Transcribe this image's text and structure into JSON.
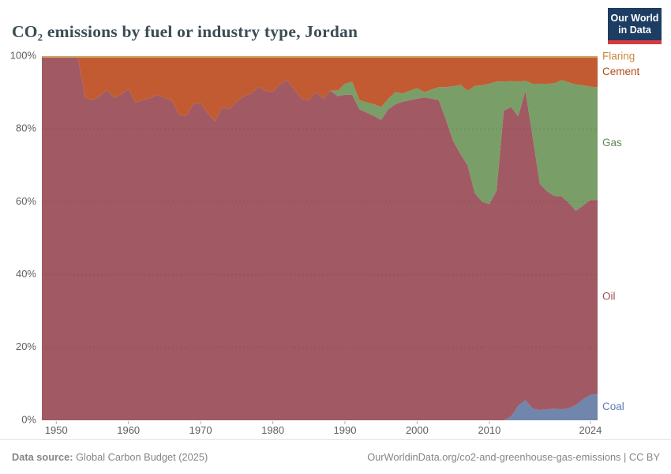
{
  "header": {
    "title": "CO₂ emissions by fuel or industry type, Jordan"
  },
  "logo": {
    "line1": "Our World",
    "line2": "in Data",
    "bg_color": "#1d3d63",
    "bar_color": "#d93a3f"
  },
  "chart_data": {
    "type": "area",
    "stacked": "percent",
    "title": "CO₂ emissions by fuel or industry type, Jordan",
    "xlabel": "",
    "ylabel": "",
    "x_start": 1948,
    "x_end": 2025,
    "xticks": [
      1950,
      1960,
      1970,
      1980,
      1990,
      2000,
      2010,
      2024
    ],
    "yticks": [
      0,
      20,
      40,
      60,
      80,
      100
    ],
    "ytick_suffix": "%",
    "ylim": [
      0,
      100
    ],
    "grid": true,
    "legend_position": "right-edge-labels",
    "axis_text_color": "#5f5f5f",
    "series": [
      {
        "name": "Coal",
        "color": "#7086ac",
        "label_color": "#5c7cb6",
        "values": [
          0,
          0,
          0,
          0,
          0,
          0,
          0,
          0,
          0,
          0,
          0,
          0,
          0,
          0,
          0,
          0,
          0,
          0,
          0,
          0,
          0,
          0,
          0,
          0,
          0,
          0,
          0,
          0,
          0,
          0,
          0,
          0,
          0,
          0,
          0,
          0,
          0,
          0,
          0,
          0,
          0,
          0,
          0,
          0,
          0,
          0,
          0,
          0,
          0,
          0,
          0,
          0,
          0,
          0,
          0,
          0,
          0,
          0,
          0,
          0,
          0,
          0,
          0,
          0,
          0,
          1.0,
          4.0,
          5.5,
          3.2,
          2.8,
          3.0,
          3.2,
          3.0,
          3.3,
          4.2,
          5.8,
          7.0,
          7.2
        ]
      },
      {
        "name": "Oil",
        "color": "#a15a63",
        "label_color": "#9d525b",
        "values": [
          99.6,
          99.6,
          99.6,
          99.6,
          99.6,
          99.6,
          88.6,
          87.9,
          89.0,
          90.7,
          88.6,
          89.5,
          91.0,
          87.2,
          87.9,
          88.5,
          89.4,
          88.5,
          87.9,
          83.9,
          83.6,
          86.8,
          87.2,
          84.3,
          82.1,
          86.1,
          85.4,
          87.6,
          89.0,
          89.7,
          91.5,
          90.5,
          90.1,
          92.3,
          93.3,
          90.8,
          88.3,
          87.9,
          90.1,
          88.3,
          90.5,
          89.0,
          89.4,
          89.4,
          85.4,
          84.5,
          83.6,
          82.5,
          85.4,
          86.8,
          87.5,
          87.9,
          88.3,
          88.7,
          88.3,
          87.9,
          82.5,
          76.7,
          73.1,
          70.0,
          62.3,
          60.0,
          59.4,
          63.0,
          85.0,
          85.0,
          79.5,
          85.0,
          74.7,
          62.1,
          59.9,
          58.4,
          58.5,
          56.4,
          53.3,
          53.2,
          53.5,
          53.3
        ]
      },
      {
        "name": "Gas",
        "color": "#799e68",
        "label_color": "#5f8b4f",
        "values": [
          0,
          0,
          0,
          0,
          0,
          0,
          0,
          0,
          0,
          0,
          0,
          0,
          0,
          0,
          0,
          0,
          0,
          0,
          0,
          0,
          0,
          0,
          0,
          0,
          0,
          0,
          0,
          0,
          0,
          0,
          0,
          0,
          0,
          0,
          0,
          0,
          0,
          0,
          0,
          0,
          0,
          1.5,
          3.0,
          3.6,
          2.5,
          2.8,
          3.2,
          3.5,
          2.9,
          3.3,
          2.2,
          2.6,
          2.9,
          1.4,
          2.5,
          3.6,
          9.0,
          15.0,
          19.0,
          20.5,
          29.5,
          32.0,
          33.0,
          30.0,
          8.0,
          7.1,
          9.5,
          2.7,
          14.5,
          27.5,
          29.5,
          30.9,
          31.9,
          33.1,
          34.7,
          33.0,
          31.1,
          31.0
        ]
      },
      {
        "name": "Cement",
        "color": "#c25b32",
        "label_color": "#b34b15",
        "values": [
          0,
          0,
          0,
          0,
          0,
          0,
          11.0,
          11.7,
          10.6,
          8.9,
          11.0,
          10.1,
          8.6,
          12.4,
          11.7,
          11.1,
          10.2,
          11.1,
          11.7,
          15.7,
          16.0,
          12.8,
          12.4,
          15.3,
          17.5,
          13.5,
          14.2,
          12.0,
          10.6,
          9.9,
          8.1,
          9.1,
          9.5,
          7.3,
          6.3,
          8.8,
          11.3,
          11.7,
          9.5,
          11.3,
          9.1,
          9.1,
          7.2,
          6.6,
          11.7,
          12.3,
          12.8,
          13.6,
          11.3,
          9.5,
          9.9,
          9.1,
          8.4,
          9.5,
          8.8,
          8.1,
          8.1,
          7.9,
          7.5,
          9.1,
          7.8,
          7.6,
          7.2,
          6.6,
          6.6,
          6.5,
          6.6,
          6.4,
          7.2,
          7.2,
          7.2,
          7.1,
          6.2,
          6.8,
          7.4,
          7.6,
          8.0,
          8.1
        ]
      },
      {
        "name": "Flaring",
        "color": "#d0a35c",
        "label_color": "#c98a42",
        "values_constant": 0.4
      }
    ]
  },
  "footer": {
    "datasource_label": "Data source:",
    "datasource_value": " Global Carbon Budget (2025)",
    "attribution": "OurWorldinData.org/co2-and-greenhouse-gas-emissions | CC BY"
  }
}
